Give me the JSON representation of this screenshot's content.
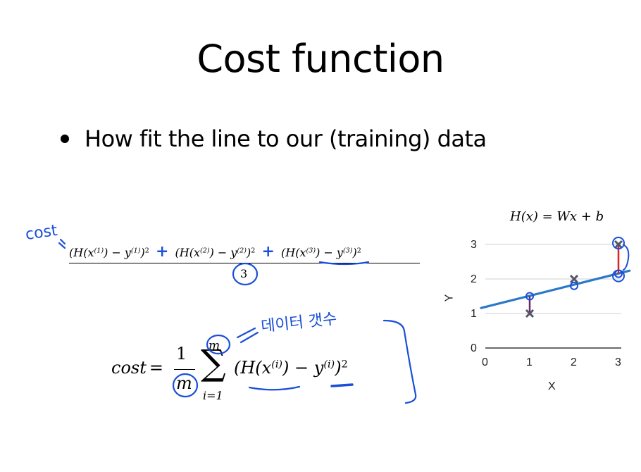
{
  "slide": {
    "title": "Cost function",
    "bullet": "How fit the line to our (training) data"
  },
  "formula_expanded": {
    "term1": "(H(x",
    "term1_sup": "(1)",
    "term1_mid": ") − y",
    "term1_sup2": "(1)",
    "term1_end": ")",
    "term2": "(H(x",
    "term2_sup": "(2)",
    "term2_mid": ") − y",
    "term2_sup2": "(2)",
    "term2_end": ")",
    "term3": "(H(x",
    "term3_sup": "(3)",
    "term3_mid": ") − y",
    "term3_sup2": "(3)",
    "term3_end": ")",
    "square": "2",
    "denominator": "3"
  },
  "formula_general": {
    "lhs": "cost",
    "equals": "=",
    "one": "1",
    "m": "m",
    "sum_upper": "m",
    "sum_lower": "i=1",
    "body_open": "(H(x",
    "body_sup": "(i)",
    "body_mid": ") − y",
    "body_sup2": "(i)",
    "body_close": ")",
    "square": "2"
  },
  "annotations": {
    "cost_note": "cost",
    "korean_note": "데이터 갯수",
    "plus": "+"
  },
  "chart_data": {
    "type": "scatter",
    "title": "H(x) = Wx + b",
    "xlabel": "X",
    "ylabel": "Y",
    "xlim": [
      0,
      3
    ],
    "ylim": [
      0,
      3
    ],
    "x_ticks": [
      "0",
      "1",
      "2",
      "3"
    ],
    "y_ticks": [
      "0",
      "1",
      "2",
      "3"
    ],
    "grid": true,
    "data_points": [
      {
        "x": 1,
        "y": 1
      },
      {
        "x": 2,
        "y": 2
      },
      {
        "x": 3,
        "y": 3
      }
    ],
    "hypothesis_points": [
      {
        "x": 1,
        "y": 1.5
      },
      {
        "x": 2,
        "y": 1.8
      },
      {
        "x": 3,
        "y": 2.15
      }
    ],
    "line": {
      "slope": 0.32,
      "intercept": 1.2
    },
    "colors": {
      "line": "#2a78c8",
      "data": "#555566",
      "error1": "#6a2a6a",
      "error3": "#e02020",
      "hand": "#1a4fd8"
    }
  }
}
